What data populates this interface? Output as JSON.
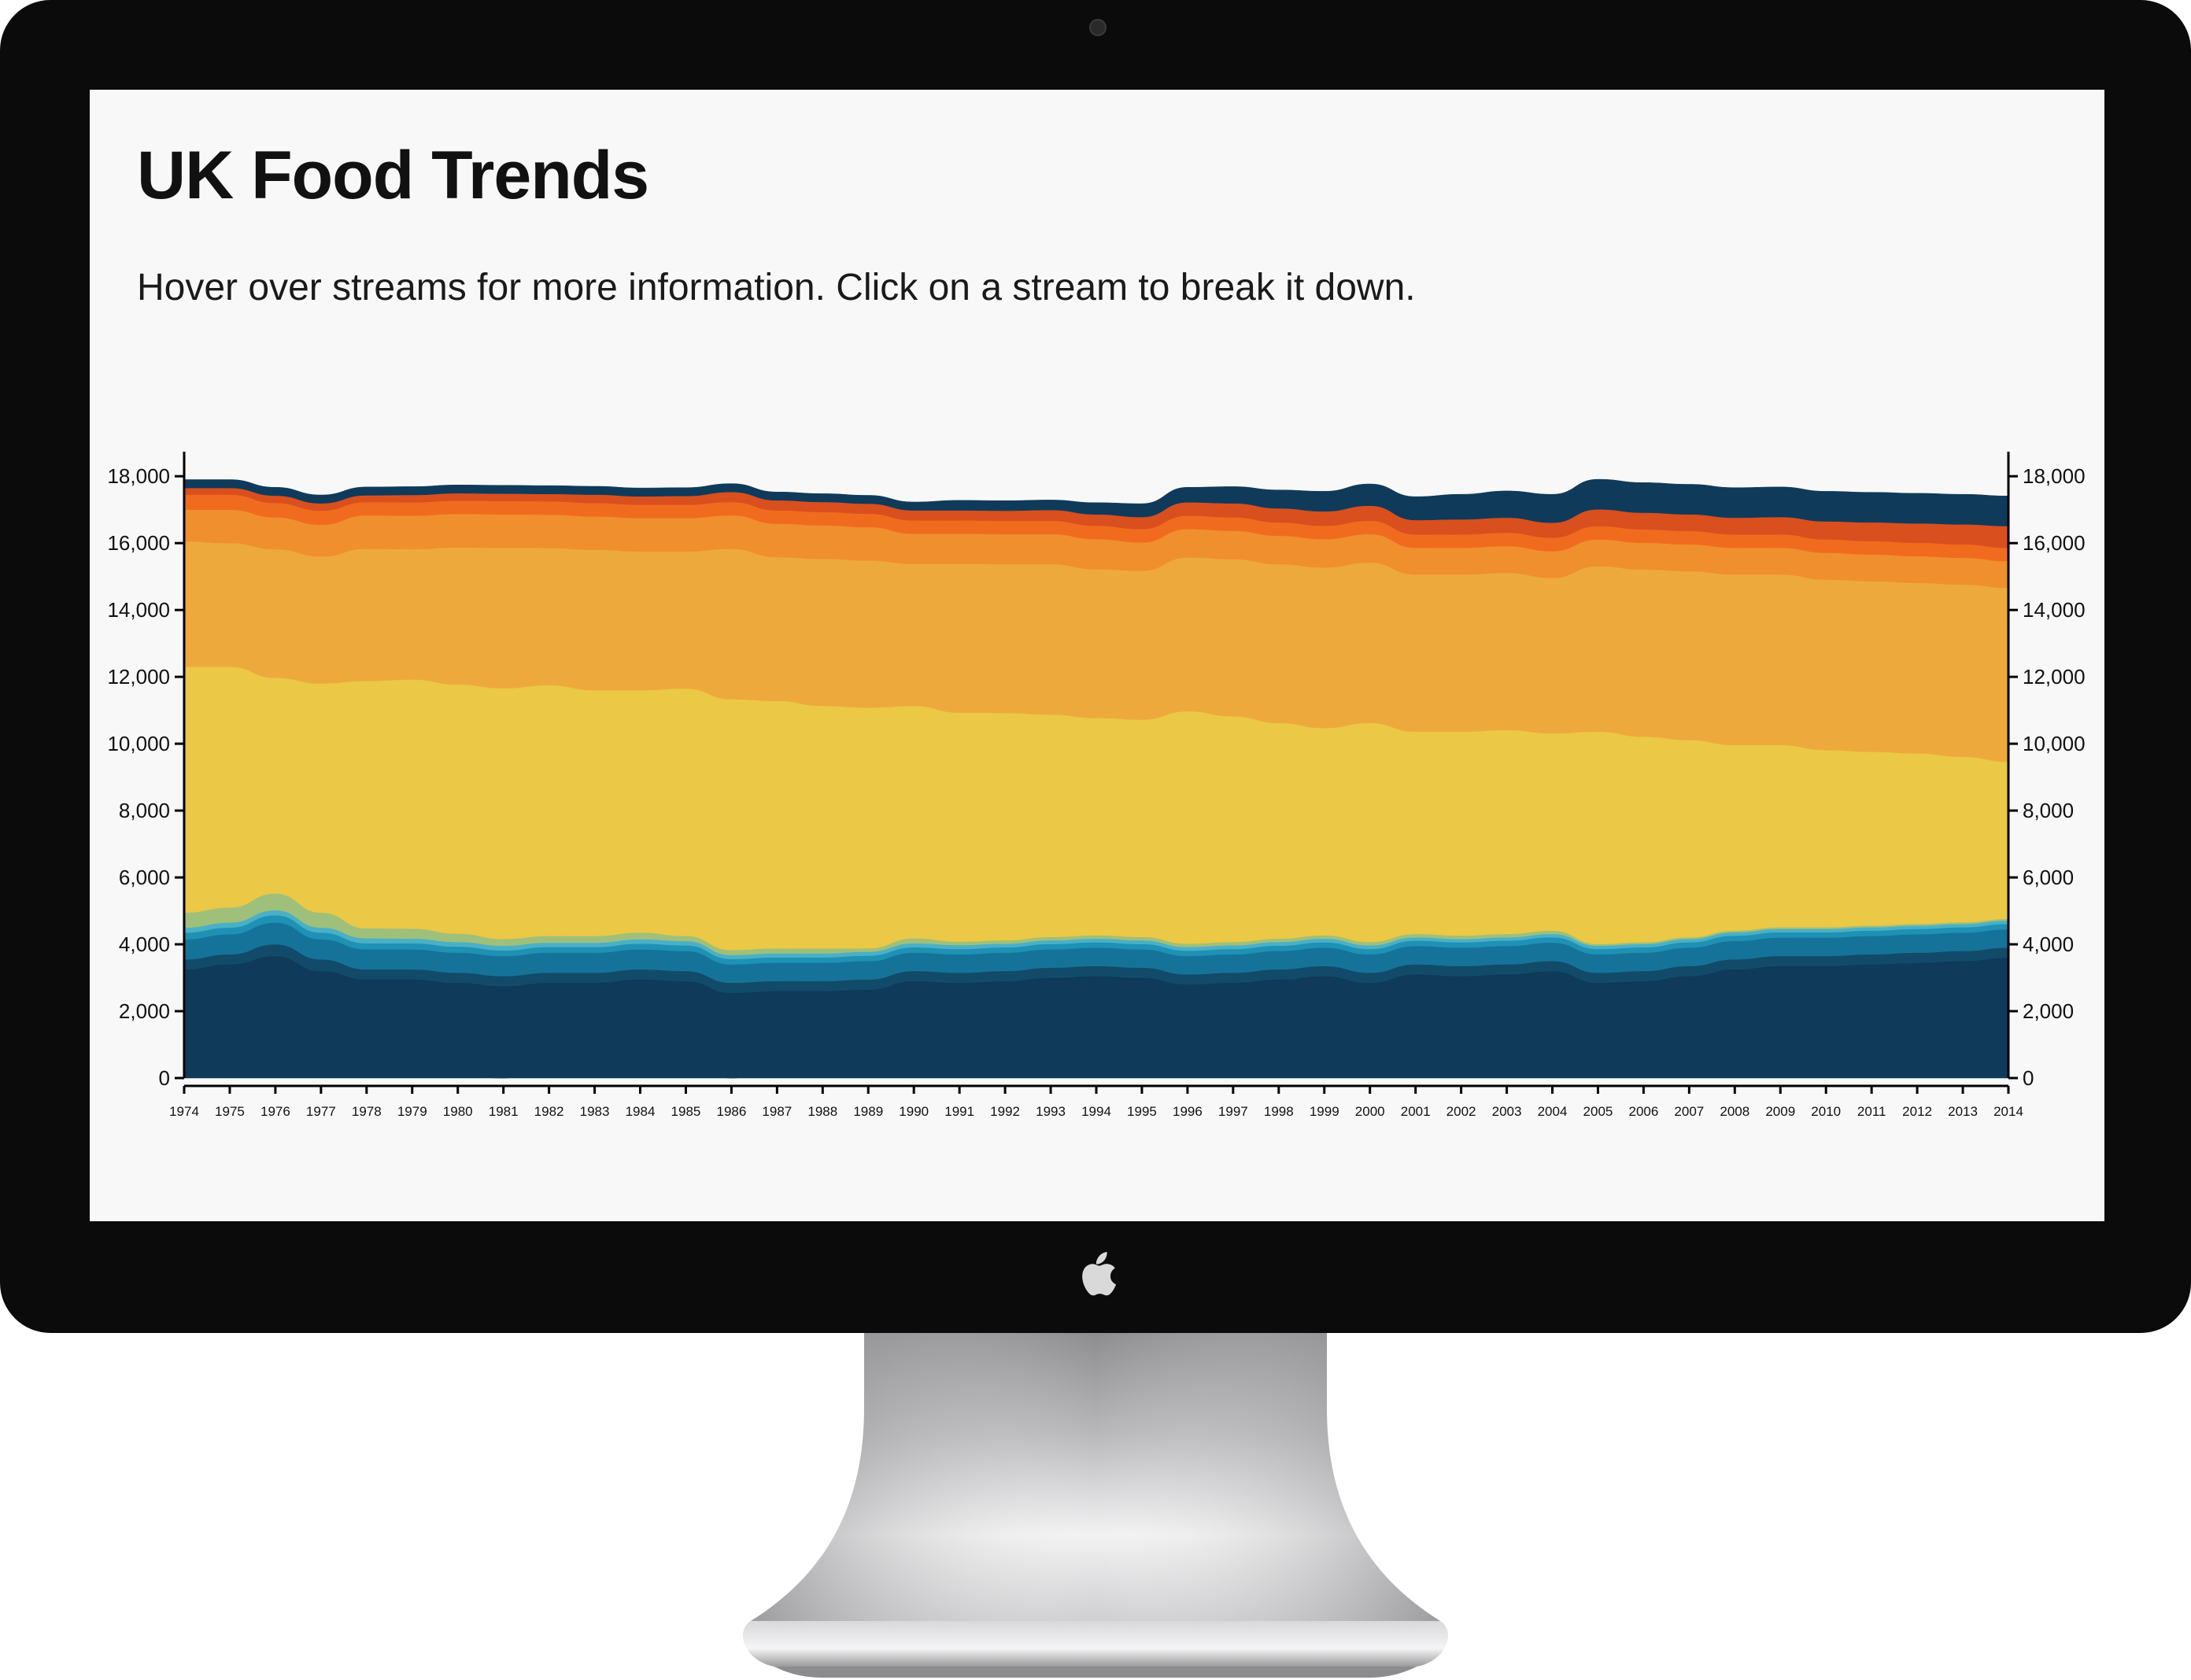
{
  "page": {
    "title": "UK Food Trends",
    "subtitle": "Hover over streams for more information. Click on a stream to break it down."
  },
  "device": {
    "camera_icon": "camera-icon",
    "logo_icon": "apple-logo-icon",
    "bezel_color": "#0b0b0b"
  },
  "chart_data": {
    "type": "area",
    "stacked": true,
    "xlabel": "",
    "ylabel": "",
    "x": [
      1974,
      1975,
      1976,
      1977,
      1978,
      1979,
      1980,
      1981,
      1982,
      1983,
      1984,
      1985,
      1986,
      1987,
      1988,
      1989,
      1990,
      1991,
      1992,
      1993,
      1994,
      1995,
      1996,
      1997,
      1998,
      1999,
      2000,
      2001,
      2002,
      2003,
      2004,
      2005,
      2006,
      2007,
      2008,
      2009,
      2010,
      2011,
      2012,
      2013,
      2014
    ],
    "ylim": [
      0,
      18500
    ],
    "yticks": [
      0,
      2000,
      4000,
      6000,
      8000,
      10000,
      12000,
      14000,
      16000,
      18000
    ],
    "ytick_labels": [
      "0",
      "2,000",
      "4,000",
      "6,000",
      "8,000",
      "10,000",
      "12,000",
      "14,000",
      "16,000",
      "18,000"
    ],
    "axes": "left-and-right",
    "grid": false,
    "series": [
      {
        "color": "#0f3a5a",
        "values": [
          100,
          200,
          550,
          300,
          50,
          100,
          50,
          0,
          200,
          200,
          300,
          300,
          0,
          150,
          200,
          250,
          500,
          500,
          500,
          600,
          650,
          600,
          450,
          500,
          650,
          800,
          600,
          900,
          900,
          950,
          1050,
          700,
          750,
          900,
          1100,
          1200,
          1250,
          1300,
          1350,
          1400,
          1500
        ]
      },
      {
        "color": "#0f3a5a",
        "values": [
          3150,
          3200,
          3100,
          2900,
          2900,
          2850,
          2800,
          2750,
          2650,
          2650,
          2650,
          2600,
          2550,
          2450,
          2400,
          2400,
          2400,
          2350,
          2400,
          2400,
          2400,
          2400,
          2350,
          2350,
          2300,
          2250,
          2250,
          2200,
          2150,
          2150,
          2150,
          2150,
          2150,
          2150,
          2150,
          2150,
          2100,
          2100,
          2100,
          2100,
          2100
        ]
      },
      {
        "color": "#124a6a",
        "values": [
          300,
          300,
          350,
          350,
          300,
          300,
          300,
          300,
          300,
          300,
          300,
          300,
          300,
          300,
          300,
          300,
          300,
          300,
          300,
          300,
          300,
          300,
          300,
          300,
          300,
          300,
          300,
          300,
          300,
          300,
          300,
          300,
          300,
          300,
          300,
          300,
          300,
          300,
          300,
          300,
          300
        ]
      },
      {
        "color": "#157399",
        "values": [
          600,
          600,
          650,
          600,
          600,
          600,
          600,
          600,
          600,
          600,
          600,
          600,
          550,
          550,
          550,
          550,
          550,
          550,
          550,
          550,
          550,
          550,
          550,
          550,
          550,
          550,
          550,
          550,
          550,
          550,
          550,
          550,
          550,
          550,
          550,
          550,
          550,
          550,
          550,
          550,
          550
        ]
      },
      {
        "color": "#1e91b5",
        "values": [
          200,
          200,
          220,
          200,
          180,
          180,
          180,
          170,
          170,
          170,
          170,
          170,
          160,
          160,
          160,
          160,
          160,
          160,
          160,
          160,
          160,
          160,
          160,
          160,
          160,
          160,
          160,
          160,
          160,
          160,
          160,
          160,
          160,
          160,
          160,
          160,
          160,
          160,
          160,
          160,
          160
        ]
      },
      {
        "color": "#4ab0c6",
        "values": [
          150,
          150,
          150,
          150,
          150,
          140,
          140,
          140,
          130,
          130,
          130,
          130,
          120,
          120,
          120,
          120,
          120,
          120,
          110,
          110,
          110,
          110,
          110,
          110,
          110,
          110,
          110,
          100,
          100,
          100,
          100,
          100,
          100,
          100,
          100,
          100,
          100,
          100,
          100,
          100,
          100
        ]
      },
      {
        "color": "#9fc07a",
        "values": [
          450,
          450,
          500,
          450,
          300,
          300,
          250,
          200,
          200,
          200,
          200,
          150,
          150,
          150,
          150,
          100,
          150,
          100,
          100,
          100,
          100,
          100,
          100,
          100,
          100,
          100,
          100,
          100,
          100,
          100,
          100,
          50,
          50,
          50,
          50,
          50,
          50,
          50,
          50,
          50,
          50
        ]
      },
      {
        "color": "#ebc845",
        "values": [
          7350,
          7200,
          6450,
          6850,
          7400,
          7450,
          7450,
          7500,
          7500,
          7350,
          7250,
          7400,
          7500,
          7400,
          7250,
          7200,
          6950,
          6850,
          6800,
          6650,
          6500,
          6500,
          6950,
          6750,
          6450,
          6200,
          6550,
          6050,
          6100,
          6100,
          5900,
          6350,
          6150,
          5900,
          5550,
          5450,
          5300,
          5200,
          5100,
          4950,
          4700
        ]
      },
      {
        "color": "#eea93c",
        "values": [
          3750,
          3700,
          3850,
          3800,
          3950,
          3900,
          4100,
          4200,
          4100,
          4200,
          4150,
          4100,
          4500,
          4300,
          4400,
          4400,
          4250,
          4450,
          4450,
          4500,
          4450,
          4450,
          4600,
          4700,
          4750,
          4800,
          4800,
          4700,
          4700,
          4700,
          4650,
          4950,
          5000,
          5050,
          5100,
          5100,
          5100,
          5100,
          5100,
          5150,
          5200
        ]
      },
      {
        "color": "#f08f2e",
        "values": [
          950,
          1000,
          950,
          950,
          1000,
          1000,
          1000,
          1000,
          1000,
          1000,
          1000,
          1000,
          1000,
          1000,
          1000,
          1000,
          900,
          900,
          900,
          900,
          900,
          850,
          850,
          850,
          850,
          850,
          850,
          800,
          800,
          800,
          800,
          800,
          800,
          800,
          800,
          800,
          800,
          800,
          800,
          800,
          800
        ]
      },
      {
        "color": "#f16b1f",
        "values": [
          450,
          450,
          430,
          420,
          400,
          400,
          400,
          400,
          400,
          400,
          400,
          400,
          400,
          400,
          400,
          400,
          400,
          400,
          400,
          400,
          400,
          400,
          400,
          400,
          400,
          400,
          400,
          400,
          400,
          400,
          400,
          400,
          400,
          400,
          400,
          400,
          400,
          400,
          400,
          400,
          400
        ]
      },
      {
        "color": "#d94f1e",
        "values": [
          200,
          200,
          220,
          220,
          200,
          220,
          220,
          220,
          220,
          250,
          250,
          260,
          300,
          300,
          300,
          300,
          300,
          300,
          300,
          320,
          340,
          360,
          400,
          420,
          420,
          430,
          450,
          430,
          450,
          450,
          450,
          500,
          500,
          500,
          500,
          520,
          540,
          560,
          580,
          600,
          650
        ]
      },
      {
        "color": "#0f3a5a",
        "values": [
          250,
          250,
          250,
          250,
          250,
          250,
          250,
          250,
          250,
          250,
          250,
          250,
          250,
          250,
          250,
          250,
          250,
          300,
          300,
          300,
          350,
          400,
          450,
          500,
          550,
          600,
          650,
          700,
          750,
          800,
          850,
          900,
          900,
          900,
          900,
          900,
          900,
          900,
          900,
          900,
          900
        ]
      }
    ]
  }
}
